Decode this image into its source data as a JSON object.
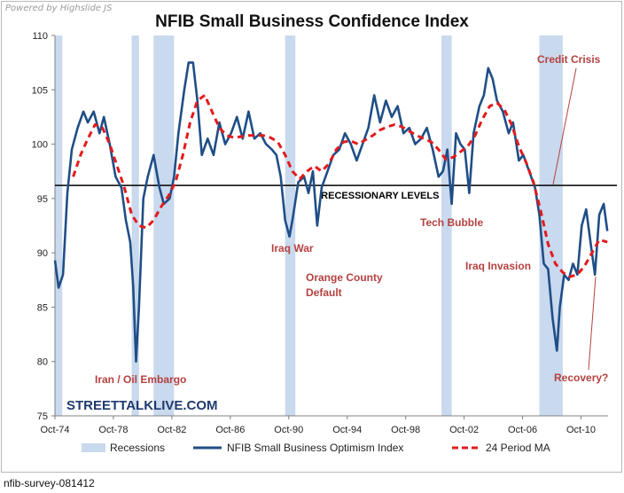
{
  "header": {
    "credit": "Powered by Highslide JS",
    "title": "NFIB Small Business Confidence Index"
  },
  "footer": {
    "caption": "nfib-survey-081412"
  },
  "colors": {
    "index_line": "#1f4e86",
    "ma_line": "#e31a1c",
    "recession_band": "#c9d9ee",
    "annotation": "#b5413f",
    "threshold": "#000000"
  },
  "chart_data": {
    "type": "line",
    "title": "NFIB Small Business Confidence Index",
    "brand": "STREETTALKLIVE.COM",
    "xlabel": "",
    "ylabel": "",
    "ylim": [
      75,
      110
    ],
    "y_ticks": [
      75,
      80,
      85,
      90,
      95,
      100,
      105,
      110
    ],
    "xlim": [
      1974.75,
      2012.6
    ],
    "x_ticks": [
      {
        "value": 1974.75,
        "label": "Oct-74"
      },
      {
        "value": 1978.75,
        "label": "Oct-78"
      },
      {
        "value": 1982.75,
        "label": "Oct-82"
      },
      {
        "value": 1986.75,
        "label": "Oct-86"
      },
      {
        "value": 1990.75,
        "label": "Oct-90"
      },
      {
        "value": 1994.75,
        "label": "Oct-94"
      },
      {
        "value": 1998.75,
        "label": "Oct-98"
      },
      {
        "value": 2002.75,
        "label": "Oct-02"
      },
      {
        "value": 2006.75,
        "label": "Oct-06"
      },
      {
        "value": 2010.75,
        "label": "Oct-10"
      }
    ],
    "recessions": [
      {
        "start": 1974.75,
        "end": 1975.25
      },
      {
        "start": 1980.0,
        "end": 1980.5
      },
      {
        "start": 1981.5,
        "end": 1982.9
      },
      {
        "start": 1990.5,
        "end": 1991.2
      },
      {
        "start": 2001.2,
        "end": 2001.9
      },
      {
        "start": 2007.9,
        "end": 2009.5
      }
    ],
    "threshold": {
      "value": 96.2,
      "label": "RECESSIONARY LEVELS"
    },
    "legend": {
      "recessions": "Recessions",
      "index": "NFIB Small Business Optimism Index",
      "ma": "24 Period MA"
    },
    "series": [
      {
        "name": "NFIB Small Business Optimism Index",
        "points": [
          [
            1974.75,
            89.3
          ],
          [
            1975.0,
            86.8
          ],
          [
            1975.3,
            88.0
          ],
          [
            1975.6,
            95.5
          ],
          [
            1975.9,
            99.5
          ],
          [
            1976.3,
            101.5
          ],
          [
            1976.7,
            103.0
          ],
          [
            1977.0,
            102.0
          ],
          [
            1977.4,
            103.0
          ],
          [
            1977.8,
            101.0
          ],
          [
            1978.1,
            102.5
          ],
          [
            1978.5,
            100.0
          ],
          [
            1978.9,
            97.0
          ],
          [
            1979.3,
            96.0
          ],
          [
            1979.6,
            93.0
          ],
          [
            1979.9,
            91.0
          ],
          [
            1980.1,
            87.0
          ],
          [
            1980.3,
            80.0
          ],
          [
            1980.5,
            85.0
          ],
          [
            1980.8,
            95.0
          ],
          [
            1981.1,
            97.0
          ],
          [
            1981.5,
            99.0
          ],
          [
            1981.9,
            96.0
          ],
          [
            1982.2,
            94.5
          ],
          [
            1982.6,
            95.0
          ],
          [
            1982.9,
            97.0
          ],
          [
            1983.2,
            101.0
          ],
          [
            1983.6,
            105.0
          ],
          [
            1983.9,
            107.5
          ],
          [
            1984.2,
            107.5
          ],
          [
            1984.5,
            104.0
          ],
          [
            1984.8,
            99.0
          ],
          [
            1985.2,
            100.5
          ],
          [
            1985.6,
            99.0
          ],
          [
            1986.0,
            102.0
          ],
          [
            1986.4,
            100.0
          ],
          [
            1986.8,
            101.0
          ],
          [
            1987.2,
            102.5
          ],
          [
            1987.6,
            100.5
          ],
          [
            1988.0,
            103.0
          ],
          [
            1988.4,
            100.5
          ],
          [
            1988.8,
            101.0
          ],
          [
            1989.2,
            100.0
          ],
          [
            1989.6,
            99.5
          ],
          [
            1989.9,
            99.0
          ],
          [
            1990.2,
            97.0
          ],
          [
            1990.5,
            93.0
          ],
          [
            1990.8,
            91.5
          ],
          [
            1991.0,
            93.0
          ],
          [
            1991.4,
            96.5
          ],
          [
            1991.8,
            97.0
          ],
          [
            1992.1,
            95.5
          ],
          [
            1992.4,
            97.5
          ],
          [
            1992.7,
            92.5
          ],
          [
            1993.0,
            96.0
          ],
          [
            1993.4,
            97.5
          ],
          [
            1993.8,
            99.0
          ],
          [
            1994.2,
            99.5
          ],
          [
            1994.6,
            101.0
          ],
          [
            1995.0,
            100.0
          ],
          [
            1995.4,
            98.5
          ],
          [
            1995.8,
            100.0
          ],
          [
            1996.2,
            101.5
          ],
          [
            1996.6,
            104.5
          ],
          [
            1997.0,
            102.0
          ],
          [
            1997.4,
            104.0
          ],
          [
            1997.8,
            102.5
          ],
          [
            1998.2,
            103.5
          ],
          [
            1998.6,
            101.0
          ],
          [
            1999.0,
            101.5
          ],
          [
            1999.4,
            100.0
          ],
          [
            1999.8,
            100.5
          ],
          [
            2000.2,
            101.5
          ],
          [
            2000.6,
            99.5
          ],
          [
            2001.0,
            97.0
          ],
          [
            2001.3,
            97.5
          ],
          [
            2001.6,
            99.5
          ],
          [
            2001.9,
            94.5
          ],
          [
            2002.2,
            101.0
          ],
          [
            2002.5,
            100.0
          ],
          [
            2002.8,
            99.5
          ],
          [
            2003.1,
            95.5
          ],
          [
            2003.4,
            101.0
          ],
          [
            2003.8,
            103.5
          ],
          [
            2004.1,
            104.5
          ],
          [
            2004.4,
            107.0
          ],
          [
            2004.7,
            106.0
          ],
          [
            2005.0,
            104.0
          ],
          [
            2005.4,
            103.0
          ],
          [
            2005.8,
            101.0
          ],
          [
            2006.1,
            102.0
          ],
          [
            2006.5,
            98.5
          ],
          [
            2006.8,
            99.0
          ],
          [
            2007.2,
            97.5
          ],
          [
            2007.6,
            96.0
          ],
          [
            2007.9,
            93.5
          ],
          [
            2008.2,
            89.0
          ],
          [
            2008.5,
            88.5
          ],
          [
            2008.8,
            84.0
          ],
          [
            2009.1,
            81.0
          ],
          [
            2009.3,
            85.0
          ],
          [
            2009.6,
            88.0
          ],
          [
            2009.9,
            87.5
          ],
          [
            2010.2,
            89.0
          ],
          [
            2010.5,
            88.0
          ],
          [
            2010.8,
            92.5
          ],
          [
            2011.1,
            94.0
          ],
          [
            2011.4,
            91.0
          ],
          [
            2011.7,
            88.0
          ],
          [
            2012.0,
            93.5
          ],
          [
            2012.3,
            94.5
          ],
          [
            2012.55,
            92.0
          ]
        ]
      },
      {
        "name": "24 Period MA",
        "points": [
          [
            1976.0,
            97.0
          ],
          [
            1976.5,
            99.0
          ],
          [
            1977.0,
            100.5
          ],
          [
            1977.5,
            101.8
          ],
          [
            1978.0,
            101.5
          ],
          [
            1978.5,
            100.0
          ],
          [
            1979.0,
            98.0
          ],
          [
            1979.5,
            96.0
          ],
          [
            1980.0,
            93.5
          ],
          [
            1980.5,
            92.5
          ],
          [
            1981.0,
            92.3
          ],
          [
            1981.5,
            93.0
          ],
          [
            1982.0,
            94.2
          ],
          [
            1982.5,
            95.2
          ],
          [
            1983.0,
            96.5
          ],
          [
            1983.5,
            99.0
          ],
          [
            1984.0,
            102.0
          ],
          [
            1984.5,
            104.0
          ],
          [
            1985.0,
            104.5
          ],
          [
            1985.5,
            103.0
          ],
          [
            1986.0,
            101.5
          ],
          [
            1986.5,
            100.8
          ],
          [
            1987.0,
            100.6
          ],
          [
            1988.0,
            100.8
          ],
          [
            1989.0,
            100.8
          ],
          [
            1989.5,
            100.6
          ],
          [
            1990.0,
            100.2
          ],
          [
            1990.5,
            99.0
          ],
          [
            1991.0,
            97.5
          ],
          [
            1991.5,
            96.8
          ],
          [
            1992.0,
            97.5
          ],
          [
            1992.5,
            98.0
          ],
          [
            1993.0,
            97.5
          ],
          [
            1993.5,
            98.2
          ],
          [
            1994.0,
            99.5
          ],
          [
            1994.5,
            100.2
          ],
          [
            1995.0,
            100.3
          ],
          [
            1995.5,
            100.0
          ],
          [
            1996.0,
            100.4
          ],
          [
            1996.5,
            100.8
          ],
          [
            1997.0,
            101.3
          ],
          [
            1997.5,
            101.6
          ],
          [
            1998.0,
            101.8
          ],
          [
            1998.5,
            101.6
          ],
          [
            1999.0,
            101.2
          ],
          [
            1999.5,
            100.8
          ],
          [
            2000.0,
            100.5
          ],
          [
            2000.5,
            100.2
          ],
          [
            2001.0,
            99.5
          ],
          [
            2001.5,
            98.6
          ],
          [
            2002.0,
            98.8
          ],
          [
            2002.5,
            99.3
          ],
          [
            2003.0,
            99.8
          ],
          [
            2003.5,
            100.8
          ],
          [
            2004.0,
            102.3
          ],
          [
            2004.5,
            103.5
          ],
          [
            2005.0,
            103.8
          ],
          [
            2005.5,
            103.2
          ],
          [
            2006.0,
            101.8
          ],
          [
            2006.5,
            99.8
          ],
          [
            2007.0,
            98.3
          ],
          [
            2007.5,
            96.5
          ],
          [
            2008.0,
            93.8
          ],
          [
            2008.5,
            90.8
          ],
          [
            2009.0,
            89.0
          ],
          [
            2009.5,
            88.2
          ],
          [
            2010.0,
            87.8
          ],
          [
            2010.5,
            88.0
          ],
          [
            2011.0,
            88.8
          ],
          [
            2011.5,
            90.0
          ],
          [
            2012.0,
            91.2
          ],
          [
            2012.55,
            91.0
          ]
        ]
      }
    ],
    "annotations": [
      {
        "id": "iran-oil-embargo",
        "text": "Iran / Oil Embargo"
      },
      {
        "id": "iraq-war",
        "text": "Iraq War"
      },
      {
        "id": "orange-county-1",
        "text": "Orange County"
      },
      {
        "id": "orange-county-2",
        "text": "Default"
      },
      {
        "id": "tech-bubble",
        "text": "Tech Bubble"
      },
      {
        "id": "iraq-invasion",
        "text": "Iraq Invasion"
      },
      {
        "id": "credit-crisis",
        "text": "Credit Crisis"
      },
      {
        "id": "recovery",
        "text": "Recovery?"
      }
    ]
  }
}
